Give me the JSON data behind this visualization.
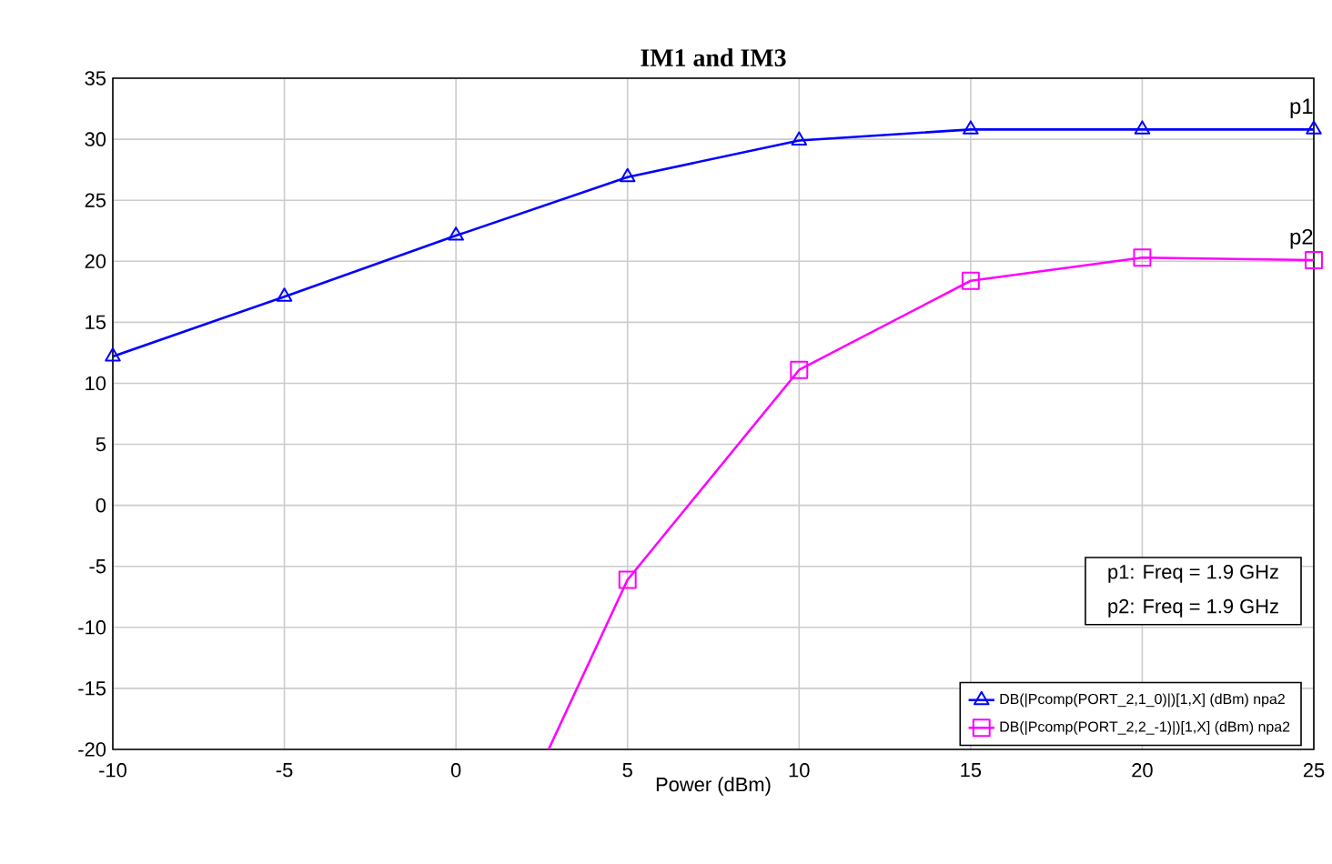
{
  "chart_data": {
    "type": "line",
    "title": "IM1 and IM3",
    "xlabel": "Power (dBm)",
    "xlim": [
      -10,
      25
    ],
    "xticks": [
      -10,
      -5,
      0,
      5,
      10,
      15,
      20,
      25
    ],
    "ylim": [
      -20,
      35
    ],
    "yticks": [
      -20,
      -15,
      -10,
      -5,
      0,
      5,
      10,
      15,
      20,
      25,
      30,
      35
    ],
    "grid": true,
    "legend": "bottom right",
    "series": [
      {
        "name": "DB(|Pcomp(PORT_2,1_0)|)[1,X] (dBm) npa2",
        "color": "#0000ff",
        "marker": "triangle",
        "x": [
          -10,
          -5,
          0,
          5,
          10,
          15,
          20,
          25
        ],
        "values": [
          12.2,
          17.1,
          22.1,
          26.9,
          29.9,
          30.8,
          30.8,
          30.8
        ]
      },
      {
        "name": "DB(|Pcomp(PORT_2,2_-1)|)[1,X] (dBm) npa2",
        "color": "#ff00ff",
        "marker": "square",
        "x": [
          2.7,
          5,
          10,
          15,
          20,
          25
        ],
        "values": [
          -20,
          -6.1,
          11.1,
          18.4,
          20.3,
          20.1
        ]
      }
    ],
    "annotations": [
      {
        "text": "p1",
        "x": 25,
        "y": 30.8
      },
      {
        "text": "p2",
        "x": 25,
        "y": 20.1
      },
      "p1: Freq = 1.9 GHz",
      "p2: Freq = 1.9 GHz"
    ]
  }
}
